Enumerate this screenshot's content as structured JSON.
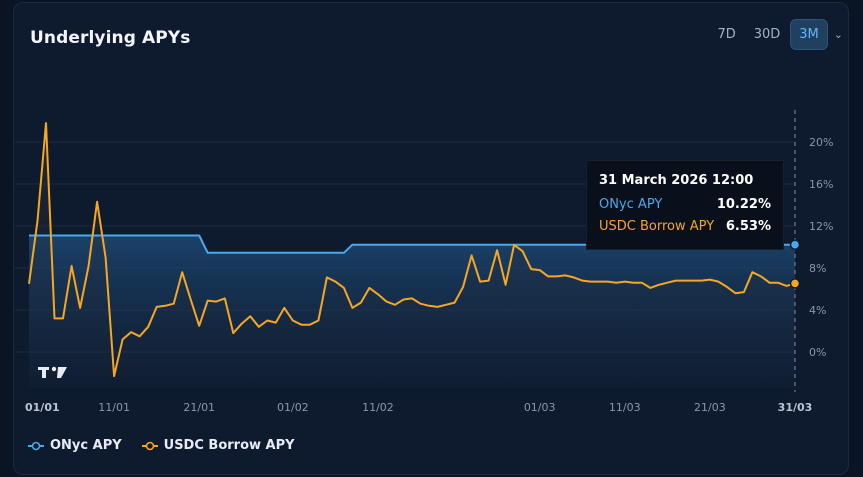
{
  "header": {
    "title": "Underlying APYs"
  },
  "ranges": {
    "options": [
      "7D",
      "30D",
      "3M"
    ],
    "selected": "3M"
  },
  "colors": {
    "onyc": "#4aa8ec",
    "usdc": "#f5a623",
    "bg": "#0e1a2d",
    "grid": "#1e2b40",
    "text": "#8797ad"
  },
  "tooltip": {
    "title": "31 March 2026 12:00",
    "rows": [
      {
        "label": "ONyc APY",
        "value": "10.22%"
      },
      {
        "label": "USDC Borrow APY",
        "value": "6.53%"
      }
    ]
  },
  "legend": [
    {
      "label": "ONyc APY",
      "icon": "onyc-legend-icon"
    },
    {
      "label": "USDC Borrow APY",
      "icon": "usdc-legend-icon"
    }
  ],
  "chart_data": {
    "type": "line",
    "x_ticks": [
      "01/01",
      "11/01",
      "21/01",
      "01/02",
      "11/02",
      "01/03",
      "11/03",
      "21/03",
      "31/03"
    ],
    "x_tick_idx": [
      0,
      10,
      20,
      31,
      41,
      60,
      70,
      80,
      90
    ],
    "y_ticks": [
      "20%",
      "16%",
      "12%",
      "8%",
      "4%",
      "0%"
    ],
    "y_tick_vals": [
      20,
      16,
      12,
      8,
      4,
      0
    ],
    "ylim": [
      -4,
      24
    ],
    "n_points": 91,
    "series": [
      {
        "name": "ONyc APY",
        "color": "#4aa8ec",
        "segments": [
          {
            "from": 0,
            "to": 20,
            "value": 11.1
          },
          {
            "from": 21,
            "to": 37,
            "value": 9.45
          },
          {
            "from": 38,
            "to": 90,
            "value": 10.22
          }
        ]
      },
      {
        "name": "USDC Borrow APY",
        "color": "#f5a623",
        "values": [
          6.5,
          12.5,
          21.8,
          3.2,
          3.2,
          8.2,
          4.2,
          8.2,
          14.3,
          9.0,
          -2.3,
          1.2,
          1.9,
          1.5,
          2.4,
          4.3,
          4.4,
          4.6,
          7.6,
          5.0,
          2.5,
          4.9,
          4.8,
          5.1,
          1.8,
          2.7,
          3.4,
          2.4,
          3.0,
          2.8,
          4.2,
          3.0,
          2.6,
          2.6,
          3.0,
          7.1,
          6.7,
          6.1,
          4.2,
          4.7,
          6.1,
          5.5,
          4.8,
          4.5,
          5.0,
          5.1,
          4.6,
          4.4,
          4.3,
          4.5,
          4.7,
          6.2,
          9.2,
          6.7,
          6.8,
          9.7,
          6.4,
          10.2,
          9.6,
          7.9,
          7.8,
          7.2,
          7.2,
          7.3,
          7.1,
          6.8,
          6.7,
          6.7,
          6.7,
          6.6,
          6.7,
          6.6,
          6.6,
          6.1,
          6.4,
          6.6,
          6.8,
          6.8,
          6.8,
          6.8,
          6.9,
          6.7,
          6.2,
          5.6,
          5.7,
          7.6,
          7.2,
          6.6,
          6.6,
          6.3,
          6.53
        ]
      }
    ]
  }
}
